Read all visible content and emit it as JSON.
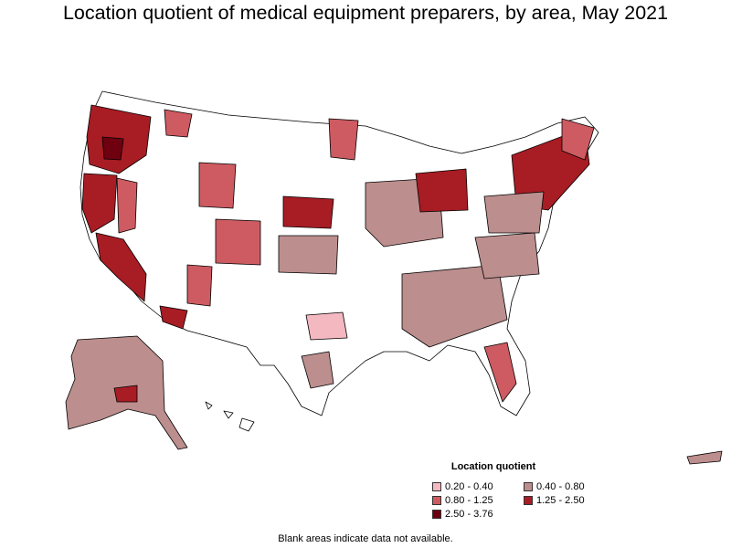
{
  "title": "Location quotient of medical equipment preparers, by area, May 2021",
  "legend": {
    "title": "Location quotient",
    "items": [
      {
        "label": "0.20 - 0.40",
        "color": "#f4b8c0"
      },
      {
        "label": "0.40 - 0.80",
        "color": "#bc8e8e"
      },
      {
        "label": "0.80 - 1.25",
        "color": "#cd5b61"
      },
      {
        "label": "1.25 - 2.50",
        "color": "#a81c24"
      },
      {
        "label": "2.50 - 3.76",
        "color": "#6e0010"
      }
    ]
  },
  "note": "Blank areas indicate data not available."
}
